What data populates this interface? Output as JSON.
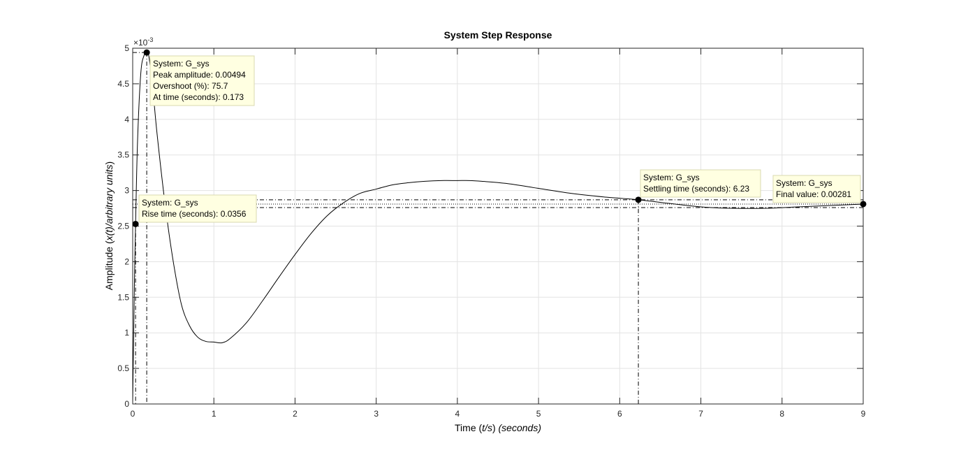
{
  "chart_data": {
    "type": "line",
    "title": "System Step Response",
    "xlabel": {
      "prefix": "Time (",
      "italic": "t/s",
      "mid": ") ",
      "suffix_italic": "(seconds)"
    },
    "ylabel": {
      "prefix": "Amplitude (",
      "italic": "x(t)/arbitrary units",
      "suffix": ")"
    },
    "xlim": [
      0,
      9
    ],
    "ylim": [
      0,
      0.005
    ],
    "x_ticks": [
      "0",
      "1",
      "2",
      "3",
      "4",
      "5",
      "6",
      "7",
      "8",
      "9"
    ],
    "y_ticks": [
      "0",
      "0.5",
      "1",
      "1.5",
      "2",
      "2.5",
      "3",
      "3.5",
      "4",
      "4.5",
      "5"
    ],
    "y_exponent": {
      "base": "×10",
      "power": "-3"
    },
    "grid": true,
    "series": [
      {
        "name": "G_sys",
        "color": "#000000",
        "x": [
          0,
          0.02,
          0.0356,
          0.06,
          0.1,
          0.14,
          0.173,
          0.2,
          0.25,
          0.3,
          0.4,
          0.5,
          0.6,
          0.7,
          0.8,
          0.9,
          1.0,
          1.1,
          1.2,
          1.4,
          1.6,
          1.8,
          2.0,
          2.2,
          2.4,
          2.6,
          2.8,
          3.0,
          3.2,
          3.4,
          3.6,
          3.8,
          4.0,
          4.15,
          4.3,
          4.6,
          5.0,
          5.4,
          5.8,
          6.23,
          6.6,
          7.0,
          7.4,
          7.8,
          8.2,
          8.6,
          9.0
        ],
        "y": [
          0,
          0.0016,
          0.00253,
          0.0037,
          0.00465,
          0.0049,
          0.00494,
          0.00488,
          0.0044,
          0.0038,
          0.0028,
          0.002,
          0.0014,
          0.0011,
          0.00094,
          0.00088,
          0.00087,
          0.00086,
          0.00092,
          0.00114,
          0.00145,
          0.00178,
          0.0021,
          0.0024,
          0.00265,
          0.00283,
          0.00296,
          0.00302,
          0.00308,
          0.00311,
          0.00313,
          0.00314,
          0.00314,
          0.00314,
          0.00313,
          0.0031,
          0.00303,
          0.00296,
          0.00291,
          0.00287,
          0.00282,
          0.00277,
          0.00275,
          0.00275,
          0.00277,
          0.00279,
          0.00281
        ]
      }
    ],
    "reference_lines": {
      "final_value": 0.00281,
      "settling_upper": 0.00287,
      "settling_lower": 0.00276,
      "rise_time": 0.0356,
      "peak_time": 0.173,
      "settling_time": 6.23
    },
    "markers": [
      {
        "id": "peak",
        "x": 0.173,
        "y": 0.00494
      },
      {
        "id": "rise",
        "x": 0.0356,
        "y": 0.00253
      },
      {
        "id": "settling",
        "x": 6.23,
        "y": 0.00287
      },
      {
        "id": "final",
        "x": 9,
        "y": 0.00281
      }
    ],
    "datatips": [
      {
        "id": "peak",
        "lines": [
          "System: G_sys",
          "Peak amplitude: 0.00494",
          "Overshoot (%): 75.7",
          "At time (seconds): 0.173"
        ],
        "width": 149
      },
      {
        "id": "rise",
        "lines": [
          "System: G_sys",
          "Rise time (seconds): 0.0356"
        ],
        "width": 168
      },
      {
        "id": "settling",
        "lines": [
          "System: G_sys",
          "Settling time (seconds): 6.23"
        ],
        "width": 172
      },
      {
        "id": "final",
        "lines": [
          "System: G_sys",
          "Final value: 0.00281"
        ],
        "width": 125
      }
    ],
    "colors": {
      "datatip_bg": "#ffffe1",
      "datatip_border": "#d8d8b0",
      "grid": "#e3e3e3",
      "axes": "#262626"
    }
  }
}
